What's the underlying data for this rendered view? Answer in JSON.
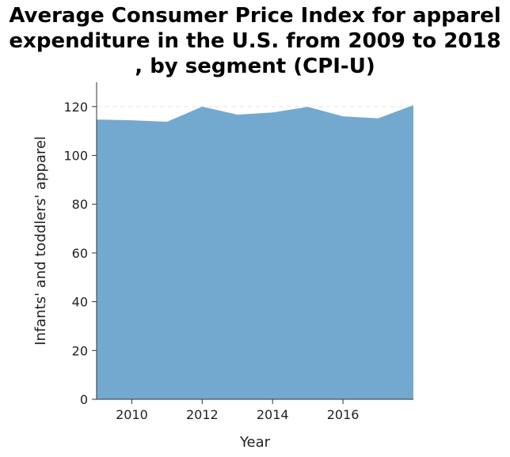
{
  "chart_data": {
    "type": "area",
    "title_lines": [
      "Average Consumer Price Index for apparel",
      "expenditure in the U.S. from 2009 to 2018",
      ", by segment (CPI-U)"
    ],
    "xlabel": "Year",
    "ylabel": "Infants' and toddlers' apparel",
    "x": [
      2009,
      2010,
      2011,
      2012,
      2013,
      2014,
      2015,
      2016,
      2017,
      2018
    ],
    "series": [
      {
        "values": [
          114.7,
          114.4,
          113.8,
          120.0,
          116.7,
          117.6,
          119.9,
          116.0,
          115.2,
          120.6
        ]
      }
    ],
    "xlim": [
      2009,
      2018
    ],
    "ylim": [
      0,
      130
    ],
    "xticks": [
      "2010",
      "2012",
      "2014",
      "2016"
    ],
    "yticks": [
      "0",
      "20",
      "40",
      "60",
      "80",
      "100",
      "120"
    ],
    "grid": "horizontal dashed at 120",
    "fill_color": "#74a9cf"
  }
}
